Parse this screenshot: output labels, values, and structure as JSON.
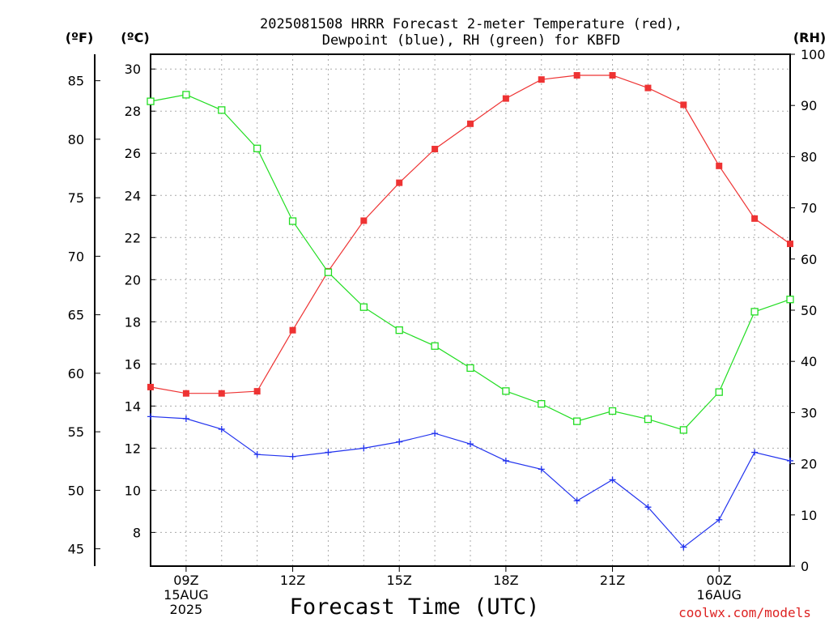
{
  "chart_data": {
    "type": "line",
    "title_line1": "2025081508 HRRR Forecast 2-meter Temperature (red),",
    "title_line2": "Dewpoint (blue), RH (green) for KBFD",
    "unit_f": "(ºF)",
    "unit_c": "(ºC)",
    "unit_rh": "(RH)",
    "xlabel": "Forecast Time (UTC)",
    "credit": "coolwx.com/models",
    "x_hours": [
      8,
      9,
      10,
      11,
      12,
      13,
      14,
      15,
      16,
      17,
      18,
      19,
      20,
      21,
      22,
      23,
      24,
      25,
      26
    ],
    "x_range": [
      8,
      26
    ],
    "x_ticks": [
      {
        "hour": 9,
        "lines": [
          "09Z",
          "15AUG",
          "2025"
        ]
      },
      {
        "hour": 12,
        "lines": [
          "12Z"
        ]
      },
      {
        "hour": 15,
        "lines": [
          "15Z"
        ]
      },
      {
        "hour": 18,
        "lines": [
          "18Z"
        ]
      },
      {
        "hour": 21,
        "lines": [
          "21Z"
        ]
      },
      {
        "hour": 24,
        "lines": [
          "00Z",
          "16AUG"
        ]
      }
    ],
    "y_c_range": [
      6.4,
      30.7
    ],
    "y_c_ticks": [
      8,
      10,
      12,
      14,
      16,
      18,
      20,
      22,
      24,
      26,
      28,
      30
    ],
    "y_f_ticks": [
      45,
      50,
      55,
      60,
      65,
      70,
      75,
      80,
      85
    ],
    "y_rh_range": [
      0,
      100
    ],
    "y_rh_ticks": [
      0,
      10,
      20,
      30,
      40,
      50,
      60,
      70,
      80,
      90,
      100
    ],
    "grid": true,
    "series": [
      {
        "name": "Temperature",
        "axis": "c",
        "color": "#ee3333",
        "marker": "filled-square",
        "values": [
          14.9,
          14.6,
          14.6,
          14.7,
          17.6,
          20.4,
          22.8,
          24.6,
          26.2,
          27.4,
          28.6,
          29.5,
          29.7,
          29.7,
          29.1,
          28.3,
          25.4,
          22.9,
          21.7
        ]
      },
      {
        "name": "Dewpoint",
        "axis": "c",
        "color": "#2233ee",
        "marker": "plus",
        "values": [
          13.5,
          13.4,
          12.9,
          11.7,
          11.6,
          11.8,
          12.0,
          12.3,
          12.7,
          12.2,
          11.4,
          11.0,
          9.5,
          10.5,
          9.2,
          7.3,
          8.6,
          11.8,
          11.4
        ]
      },
      {
        "name": "RH",
        "axis": "rh",
        "color": "#22dd22",
        "marker": "open-square",
        "values": [
          90.8,
          92.1,
          89.1,
          81.6,
          67.4,
          57.4,
          50.6,
          46.1,
          43.0,
          38.7,
          34.2,
          31.7,
          28.3,
          30.3,
          28.7,
          26.6,
          34.0,
          49.7,
          52.1
        ]
      }
    ]
  }
}
